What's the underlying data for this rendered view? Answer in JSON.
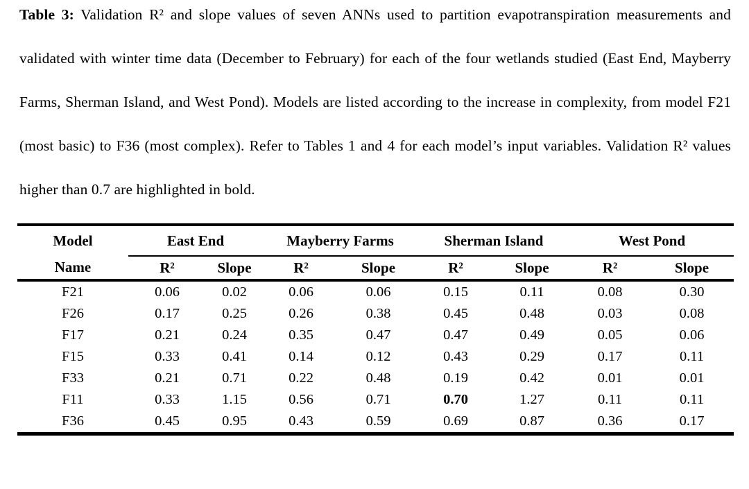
{
  "caption": {
    "label": "Table 3:",
    "text": " Validation R² and slope values of seven ANNs used to partition evapotranspiration measurements and validated with winter time data (December to February) for each of the four wetlands studied (East End, Mayberry Farms, Sherman Island, and West Pond). Models are listed according to the increase in complexity, from model F21 (most basic) to F36 (most complex). Refer to Tables 1 and 4 for each model’s input variables. Validation R² values higher than 0.7 are highlighted in bold."
  },
  "table": {
    "groups": [
      "East End",
      "Mayberry Farms",
      "Sherman Island",
      "West Pond"
    ],
    "header": {
      "model": "Model",
      "name": "Name",
      "r2": "R²",
      "slope": "Slope"
    },
    "rows": [
      {
        "model": "F21",
        "values": [
          "0.06",
          "0.02",
          "0.06",
          "0.06",
          "0.15",
          "0.11",
          "0.08",
          "0.30"
        ],
        "bold": []
      },
      {
        "model": "F26",
        "values": [
          "0.17",
          "0.25",
          "0.26",
          "0.38",
          "0.45",
          "0.48",
          "0.03",
          "0.08"
        ],
        "bold": []
      },
      {
        "model": "F17",
        "values": [
          "0.21",
          "0.24",
          "0.35",
          "0.47",
          "0.47",
          "0.49",
          "0.05",
          "0.06"
        ],
        "bold": []
      },
      {
        "model": "F15",
        "values": [
          "0.33",
          "0.41",
          "0.14",
          "0.12",
          "0.43",
          "0.29",
          "0.17",
          "0.11"
        ],
        "bold": []
      },
      {
        "model": "F33",
        "values": [
          "0.21",
          "0.71",
          "0.22",
          "0.48",
          "0.19",
          "0.42",
          "0.01",
          "0.01"
        ],
        "bold": []
      },
      {
        "model": "F11",
        "values": [
          "0.33",
          "1.15",
          "0.56",
          "0.71",
          "0.70",
          "1.27",
          "0.11",
          "0.11"
        ],
        "bold": [
          4
        ]
      },
      {
        "model": "F36",
        "values": [
          "0.45",
          "0.95",
          "0.43",
          "0.59",
          "0.69",
          "0.87",
          "0.36",
          "0.17"
        ],
        "bold": []
      }
    ],
    "rule_color": "#000000"
  },
  "page": {
    "background": "#ffffff",
    "text_color": "#000000"
  }
}
